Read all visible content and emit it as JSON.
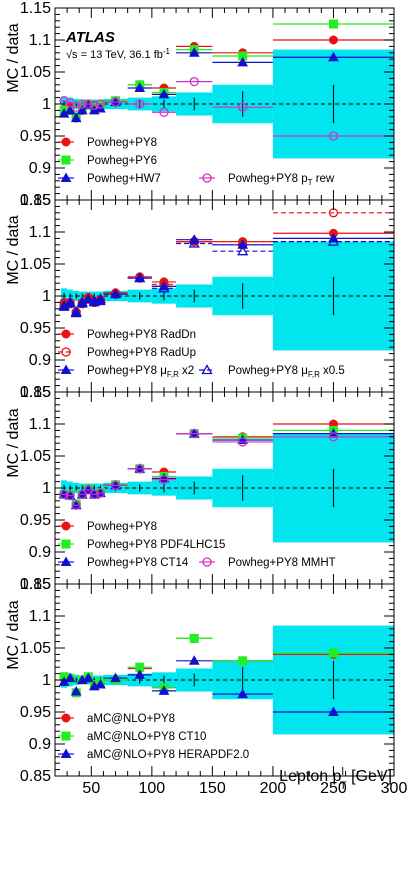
{
  "figure": {
    "xlabel": "Lepton p",
    "xlabel_sup": "l",
    "xlabel_sub": "T",
    "xlabel_unit": " [GeV]",
    "ylabel": "MC / data",
    "atlas_label": "ATLAS",
    "energy_sqrt": "√s",
    "energy_label": " = 13 TeV, 36.1 fb",
    "energy_sup": "-1"
  },
  "colors": {
    "band": "#00e5ee",
    "red": "#ee1111",
    "green": "#22ee22",
    "blue": "#1111cc",
    "magenta": "#cc33cc",
    "data": "#000000"
  },
  "chart_data": [
    {
      "type": "scatter",
      "xlim": [
        20,
        300
      ],
      "ylim": [
        0.85,
        1.15
      ],
      "xticks": [
        50,
        100,
        150,
        200,
        250,
        300
      ],
      "yticks": [
        0.85,
        0.9,
        0.95,
        1.0,
        1.05,
        1.1,
        1.15
      ],
      "ytick_labels": [
        "0.85",
        "0.9",
        "0.95",
        "1",
        "1.05",
        "1.1",
        "1.15"
      ],
      "bins": [
        [
          25,
          30
        ],
        [
          30,
          35
        ],
        [
          35,
          40
        ],
        [
          40,
          45
        ],
        [
          45,
          50
        ],
        [
          50,
          55
        ],
        [
          55,
          60
        ],
        [
          60,
          80
        ],
        [
          80,
          100
        ],
        [
          100,
          120
        ],
        [
          120,
          150
        ],
        [
          150,
          200
        ],
        [
          200,
          300
        ]
      ],
      "band_halfwidth": [
        0.012,
        0.01,
        0.008,
        0.007,
        0.007,
        0.007,
        0.007,
        0.008,
        0.01,
        0.012,
        0.018,
        0.03,
        0.085
      ],
      "data_err": [
        0.005,
        0.004,
        0.004,
        0.004,
        0.004,
        0.004,
        0.004,
        0.005,
        0.006,
        0.007,
        0.01,
        0.02,
        0.03
      ],
      "series": [
        {
          "name": "Powheg+PY8",
          "color": "#ee1111",
          "marker": "circle",
          "filled": true,
          "dashed": false,
          "values": [
            0.99,
            0.995,
            0.978,
            0.99,
            1.0,
            0.995,
            0.996,
            1.005,
            1.03,
            1.025,
            1.09,
            1.08,
            1.1
          ]
        },
        {
          "name": "Powheg+PY6",
          "color": "#22ee22",
          "marker": "square",
          "filled": true,
          "dashed": false,
          "values": [
            0.99,
            0.99,
            0.98,
            0.995,
            1.0,
            0.995,
            0.998,
            1.005,
            1.03,
            1.018,
            1.085,
            1.075,
            1.125
          ]
        },
        {
          "name": "Powheg+HW7",
          "color": "#1111cc",
          "marker": "triangle",
          "filled": true,
          "dashed": false,
          "values": [
            0.985,
            0.99,
            0.978,
            0.99,
            0.998,
            0.99,
            0.993,
            1.003,
            1.025,
            1.015,
            1.08,
            1.065,
            1.073
          ]
        },
        {
          "name": "Powheg+PY8 p",
          "name_sub": "T",
          "name_suffix": " rew",
          "color": "#cc33cc",
          "marker": "circle",
          "filled": false,
          "dashed": false,
          "values": [
            1.005,
            1.002,
            0.995,
            1.0,
            1.0,
            0.998,
            1.0,
            1.003,
            1.0,
            0.987,
            1.035,
            0.995,
            0.95
          ]
        }
      ],
      "legend": [
        {
          "series": 0,
          "col": 0,
          "row": 0
        },
        {
          "series": 1,
          "col": 0,
          "row": 1
        },
        {
          "series": 2,
          "col": 0,
          "row": 2
        },
        {
          "series": 3,
          "col": 1,
          "row": 2
        }
      ]
    },
    {
      "type": "scatter",
      "xlim": [
        20,
        300
      ],
      "ylim": [
        0.85,
        1.15
      ],
      "xticks": [
        50,
        100,
        150,
        200,
        250,
        300
      ],
      "yticks": [
        0.85,
        0.9,
        0.95,
        1.0,
        1.05,
        1.1,
        1.15
      ],
      "ytick_labels": [
        "0.85",
        "0.9",
        "0.95",
        "1",
        "1.05",
        "1.1",
        "1.15"
      ],
      "bins": [
        [
          25,
          30
        ],
        [
          30,
          35
        ],
        [
          35,
          40
        ],
        [
          40,
          45
        ],
        [
          45,
          50
        ],
        [
          50,
          55
        ],
        [
          55,
          60
        ],
        [
          60,
          80
        ],
        [
          80,
          100
        ],
        [
          100,
          120
        ],
        [
          120,
          150
        ],
        [
          150,
          200
        ],
        [
          200,
          300
        ]
      ],
      "band_halfwidth": [
        0.012,
        0.01,
        0.008,
        0.007,
        0.007,
        0.007,
        0.007,
        0.008,
        0.01,
        0.012,
        0.018,
        0.03,
        0.085
      ],
      "data_err": [
        0.005,
        0.004,
        0.004,
        0.004,
        0.004,
        0.004,
        0.004,
        0.005,
        0.006,
        0.007,
        0.01,
        0.02,
        0.03
      ],
      "series": [
        {
          "name": "Powheg+PY8 RadDn",
          "color": "#ee1111",
          "marker": "circle",
          "filled": true,
          "dashed": false,
          "values": [
            0.99,
            0.99,
            0.975,
            0.99,
            0.998,
            0.992,
            0.995,
            1.005,
            1.03,
            1.022,
            1.085,
            1.085,
            1.098
          ]
        },
        {
          "name": "Powheg+PY8 RadUp",
          "color": "#ee1111",
          "marker": "circle",
          "filled": false,
          "dashed": true,
          "values": [
            0.985,
            0.988,
            0.975,
            0.988,
            0.995,
            0.99,
            0.993,
            1.003,
            1.028,
            1.018,
            1.085,
            1.08,
            1.13
          ]
        },
        {
          "name": "Powheg+PY8 μ",
          "name_sub": "F,R",
          "name_suffix": " x2",
          "color": "#1111cc",
          "marker": "triangle",
          "filled": true,
          "dashed": false,
          "values": [
            0.983,
            0.988,
            0.973,
            0.988,
            0.995,
            0.99,
            0.992,
            1.003,
            1.028,
            1.015,
            1.088,
            1.08,
            1.09
          ]
        },
        {
          "name": "Powheg+PY8 μ",
          "name_sub": "F,R",
          "name_suffix": " x0.5",
          "color": "#1111cc",
          "marker": "triangle",
          "filled": false,
          "dashed": true,
          "values": [
            0.985,
            0.99,
            0.975,
            0.99,
            0.995,
            0.992,
            0.995,
            1.003,
            1.028,
            1.012,
            1.082,
            1.07,
            1.085
          ]
        }
      ],
      "legend": [
        {
          "series": 0,
          "col": 0,
          "row": 0
        },
        {
          "series": 1,
          "col": 0,
          "row": 1
        },
        {
          "series": 2,
          "col": 0,
          "row": 2
        },
        {
          "series": 3,
          "col": 1,
          "row": 2
        }
      ]
    },
    {
      "type": "scatter",
      "xlim": [
        20,
        300
      ],
      "ylim": [
        0.85,
        1.15
      ],
      "xticks": [
        50,
        100,
        150,
        200,
        250,
        300
      ],
      "yticks": [
        0.85,
        0.9,
        0.95,
        1.0,
        1.05,
        1.1,
        1.15
      ],
      "ytick_labels": [
        "0.85",
        "0.9",
        "0.95",
        "1",
        "1.05",
        "1.1",
        "1.15"
      ],
      "bins": [
        [
          25,
          30
        ],
        [
          30,
          35
        ],
        [
          35,
          40
        ],
        [
          40,
          45
        ],
        [
          45,
          50
        ],
        [
          50,
          55
        ],
        [
          55,
          60
        ],
        [
          60,
          80
        ],
        [
          80,
          100
        ],
        [
          100,
          120
        ],
        [
          120,
          150
        ],
        [
          150,
          200
        ],
        [
          200,
          300
        ]
      ],
      "band_halfwidth": [
        0.012,
        0.01,
        0.008,
        0.007,
        0.007,
        0.007,
        0.007,
        0.008,
        0.01,
        0.012,
        0.018,
        0.03,
        0.085
      ],
      "data_err": [
        0.005,
        0.004,
        0.004,
        0.004,
        0.004,
        0.004,
        0.004,
        0.005,
        0.006,
        0.007,
        0.01,
        0.02,
        0.03
      ],
      "series": [
        {
          "name": "Powheg+PY8",
          "color": "#ee1111",
          "marker": "circle",
          "filled": true,
          "dashed": false,
          "values": [
            0.99,
            0.99,
            0.975,
            0.99,
            0.998,
            0.99,
            0.993,
            1.005,
            1.03,
            1.025,
            1.085,
            1.08,
            1.1
          ]
        },
        {
          "name": "Powheg+PY8 PDF4LHC15",
          "color": "#22ee22",
          "marker": "square",
          "filled": true,
          "dashed": false,
          "values": [
            0.99,
            0.99,
            0.975,
            0.99,
            0.998,
            0.99,
            0.993,
            1.005,
            1.03,
            1.018,
            1.085,
            1.078,
            1.09
          ]
        },
        {
          "name": "Powheg+PY8 CT14",
          "color": "#1111cc",
          "marker": "triangle",
          "filled": true,
          "dashed": false,
          "values": [
            0.99,
            0.988,
            0.973,
            0.99,
            0.997,
            0.99,
            0.992,
            1.004,
            1.03,
            1.015,
            1.085,
            1.075,
            1.085
          ]
        },
        {
          "name": "Powheg+PY8 MMHT",
          "color": "#cc33cc",
          "marker": "circle",
          "filled": false,
          "dashed": false,
          "values": [
            0.99,
            0.988,
            0.973,
            0.99,
            0.997,
            0.99,
            0.992,
            1.004,
            1.03,
            1.013,
            1.085,
            1.072,
            1.08
          ]
        }
      ],
      "legend": [
        {
          "series": 0,
          "col": 0,
          "row": 0
        },
        {
          "series": 1,
          "col": 0,
          "row": 1
        },
        {
          "series": 2,
          "col": 0,
          "row": 2
        },
        {
          "series": 3,
          "col": 1,
          "row": 2
        }
      ]
    },
    {
      "type": "scatter",
      "xlim": [
        20,
        300
      ],
      "ylim": [
        0.85,
        1.15
      ],
      "xticks": [
        50,
        100,
        150,
        200,
        250,
        300
      ],
      "yticks": [
        0.85,
        0.9,
        0.95,
        1.0,
        1.05,
        1.1,
        1.15
      ],
      "ytick_labels": [
        "0.85",
        "0.9",
        "0.95",
        "1",
        "1.05",
        "1.1",
        "1.15"
      ],
      "bins": [
        [
          25,
          30
        ],
        [
          30,
          35
        ],
        [
          35,
          40
        ],
        [
          40,
          45
        ],
        [
          45,
          50
        ],
        [
          50,
          55
        ],
        [
          55,
          60
        ],
        [
          60,
          80
        ],
        [
          80,
          100
        ],
        [
          100,
          120
        ],
        [
          120,
          150
        ],
        [
          150,
          200
        ],
        [
          200,
          300
        ]
      ],
      "band_halfwidth": [
        0.012,
        0.01,
        0.008,
        0.007,
        0.007,
        0.007,
        0.007,
        0.008,
        0.01,
        0.012,
        0.018,
        0.03,
        0.085
      ],
      "data_err": [
        0.005,
        0.004,
        0.004,
        0.004,
        0.004,
        0.004,
        0.004,
        0.005,
        0.006,
        0.007,
        0.01,
        0.02,
        0.03
      ],
      "series": [
        {
          "name": "aMC@NLO+PY8",
          "color": "#ee1111",
          "marker": "circle",
          "filled": true,
          "dashed": false,
          "values": [
            1.003,
            1.002,
            0.98,
            1.0,
            1.003,
            0.993,
            0.995,
            1.0,
            1.018,
            0.988,
            1.065,
            1.03,
            1.04
          ]
        },
        {
          "name": "aMC@NLO+PY8 CT10",
          "color": "#22ee22",
          "marker": "square",
          "filled": true,
          "dashed": false,
          "values": [
            1.005,
            1.002,
            0.98,
            1.0,
            1.005,
            0.993,
            0.995,
            1.0,
            1.02,
            0.988,
            1.065,
            1.03,
            1.042
          ]
        },
        {
          "name": "aMC@NLO+PY8 HERAPDF2.0",
          "color": "#1111cc",
          "marker": "triangle",
          "filled": true,
          "dashed": false,
          "values": [
            0.997,
            1.003,
            0.982,
            1.0,
            1.003,
            0.99,
            0.993,
            1.003,
            1.008,
            0.983,
            1.03,
            0.978,
            0.95
          ]
        }
      ],
      "legend": [
        {
          "series": 0,
          "col": 0,
          "row": 0
        },
        {
          "series": 1,
          "col": 0,
          "row": 1
        },
        {
          "series": 2,
          "col": 0,
          "row": 2
        }
      ]
    }
  ]
}
